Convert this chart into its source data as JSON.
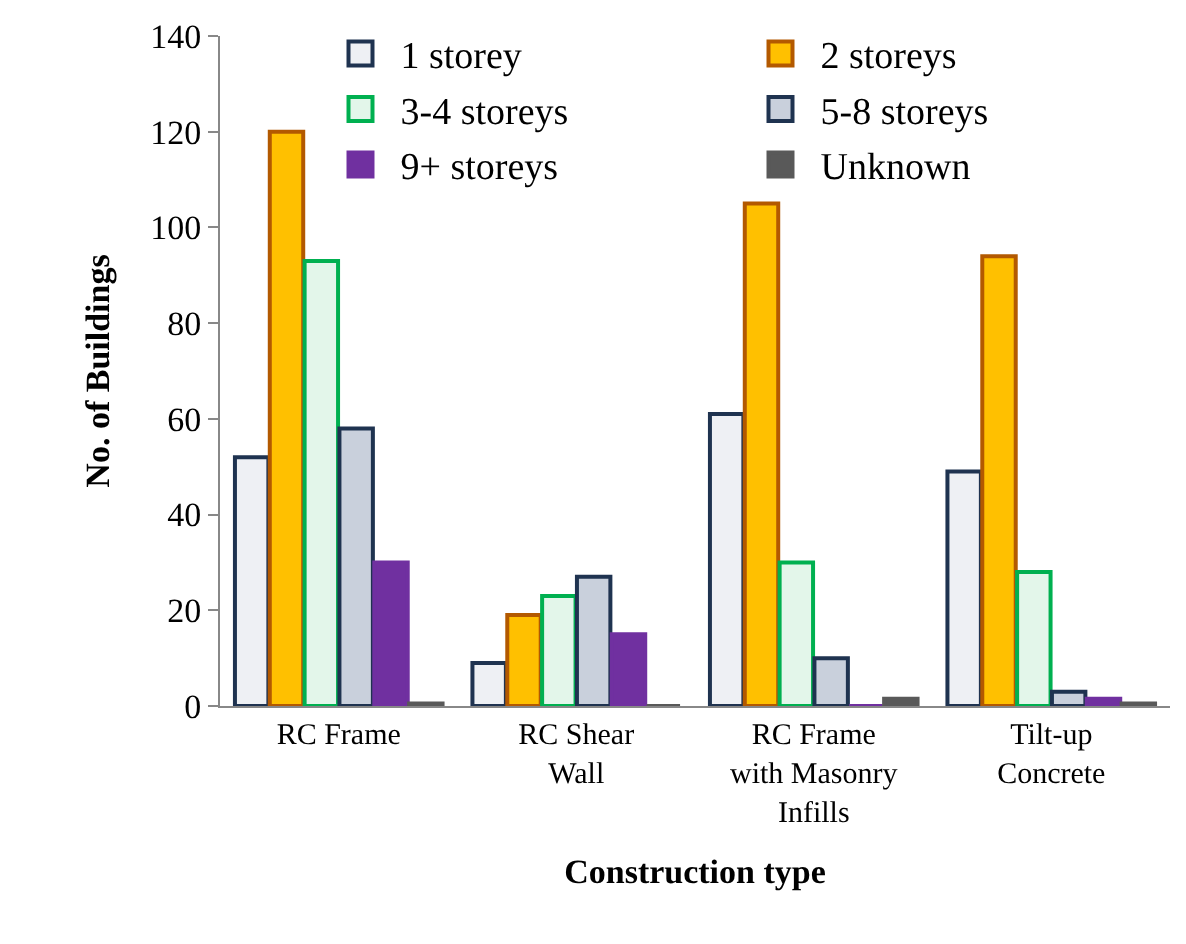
{
  "chart_data": {
    "type": "bar",
    "xlabel": "Construction type",
    "ylabel": "No. of Buildings",
    "categories": [
      "RC Frame",
      "RC Shear\nWall",
      "RC Frame\nwith Masonry\nInfills",
      "Tilt-up\nConcrete"
    ],
    "series": [
      {
        "name": "1 storey",
        "color": "#1f3350",
        "values": [
          52,
          9,
          61,
          49
        ]
      },
      {
        "name": "2 storeys",
        "color": "#b35900",
        "values": [
          120,
          19,
          105,
          94
        ]
      },
      {
        "name": "3-4 storeys",
        "color": "#00b050",
        "values": [
          93,
          23,
          30,
          28
        ]
      },
      {
        "name": "5-8 storeys",
        "color": "#1f3350",
        "values": [
          58,
          27,
          10,
          3
        ]
      },
      {
        "name": "9+ storeys",
        "color": "#7030a0",
        "values": [
          30,
          15,
          0,
          1.5
        ]
      },
      {
        "name": "Unknown",
        "color": "#595959",
        "values": [
          0.5,
          0,
          1.5,
          0.5
        ]
      }
    ],
    "ylim": [
      0,
      140
    ],
    "yticks": [
      0,
      20,
      40,
      60,
      80,
      100,
      120,
      140
    ],
    "legend": "top right"
  }
}
